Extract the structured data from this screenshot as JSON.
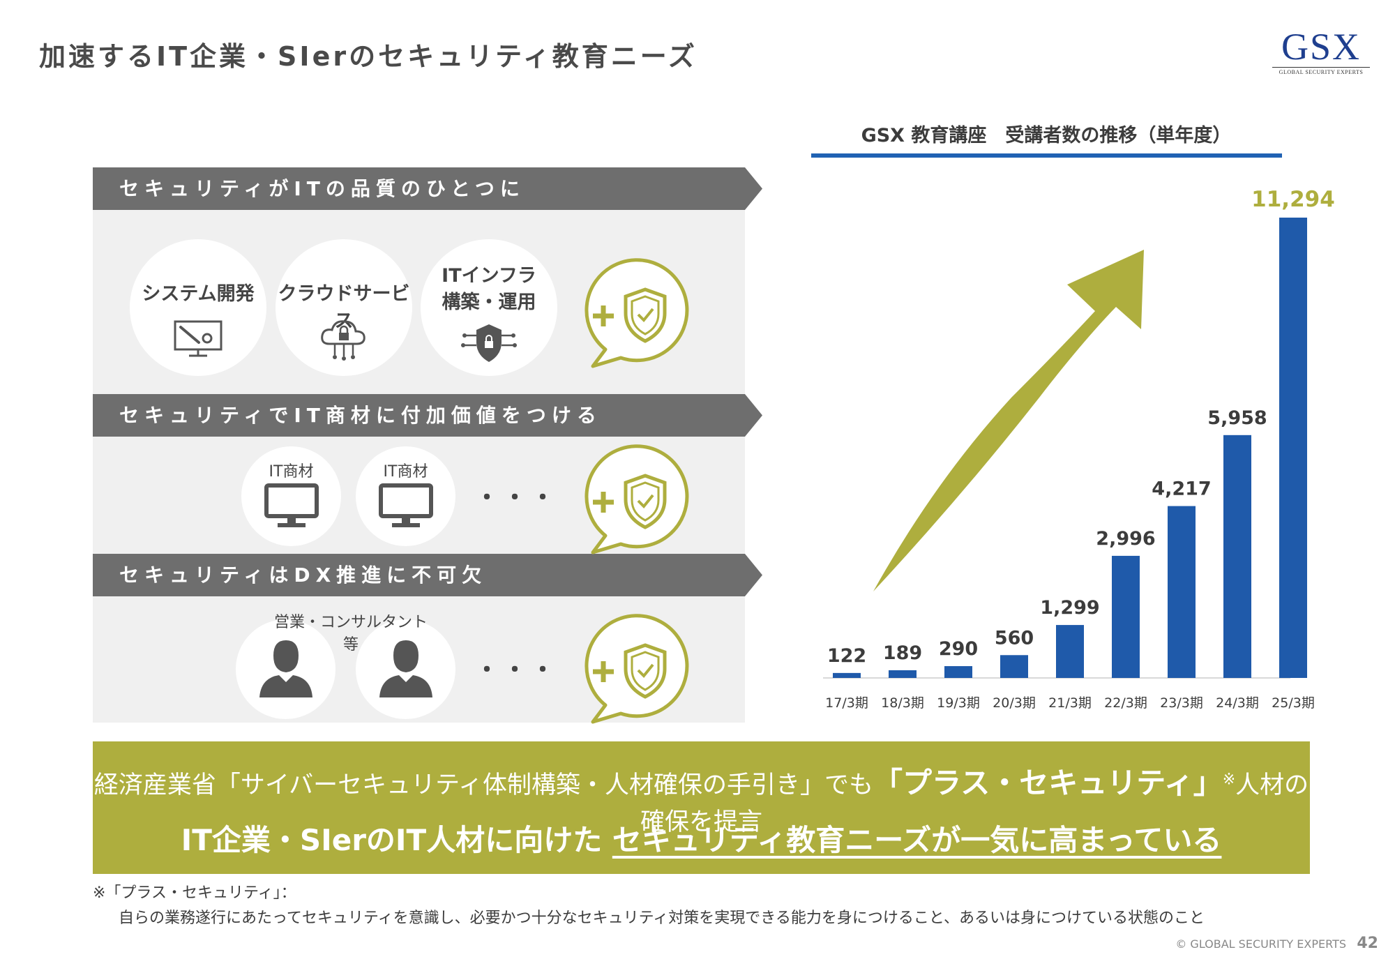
{
  "page": {
    "title": "加速するIT企業・SIerのセキュリティ教育ニーズ",
    "logo_text": "GSX",
    "logo_sub": "GLOBAL SECURITY EXPERTS",
    "copyright": "© GLOBAL SECURITY EXPERTS",
    "page_number": "42"
  },
  "sections": [
    {
      "heading": "セキュリティがITの品質のひとつに",
      "items": [
        "システム開発",
        "クラウドサービス",
        "ITインフラ",
        "構築・運用"
      ]
    },
    {
      "heading": "セキュリティでIT商材に付加価値をつける",
      "items": [
        "IT商材",
        "IT商材"
      ],
      "ellipsis": "・・・"
    },
    {
      "heading": "セキュリティはDX推進に不可欠",
      "label": "営業・コンサルタント等",
      "ellipsis": "・・・"
    }
  ],
  "plus_symbol": "+",
  "colors": {
    "bar": "#1f5aaa",
    "highlight": "#aeae3e",
    "band": "#6e6e6e",
    "panel": "#f0f0f0",
    "title_line": "#2062b3"
  },
  "banner": {
    "line1_pre": "経済産業省「サイバーセキュリティ体制構築・人材確保の手引き」でも",
    "line1_em": "「プラス・セキュリティ」",
    "line1_note": "※",
    "line1_post": "人材の確保を提言",
    "line2_pre": "IT企業・SIerのIT人材に向けた ",
    "line2_ul": "セキュリティ教育ニーズが一気に高まっている"
  },
  "footnote": {
    "head": "※「プラス・セキュリティ」：",
    "body": "自らの業務遂行にあたってセキュリティを意識し、必要かつ十分なセキュリティ対策を実現できる能力を身につけること、あるいは身につけている状態のこと"
  },
  "chart_data": {
    "type": "bar",
    "title": "GSX 教育講座　受講者数の推移（単年度）",
    "categories": [
      "17/3期",
      "18/3期",
      "19/3期",
      "20/3期",
      "21/3期",
      "22/3期",
      "23/3期",
      "24/3期",
      "25/3期"
    ],
    "values": [
      122,
      189,
      290,
      560,
      1299,
      2996,
      4217,
      5958,
      11294
    ],
    "labels": [
      "122",
      "189",
      "290",
      "560",
      "1,299",
      "2,996",
      "4,217",
      "5,958",
      "11,294"
    ],
    "highlight_index": 8,
    "ylim": [
      0,
      11294
    ],
    "grid": false,
    "legend": "none"
  }
}
